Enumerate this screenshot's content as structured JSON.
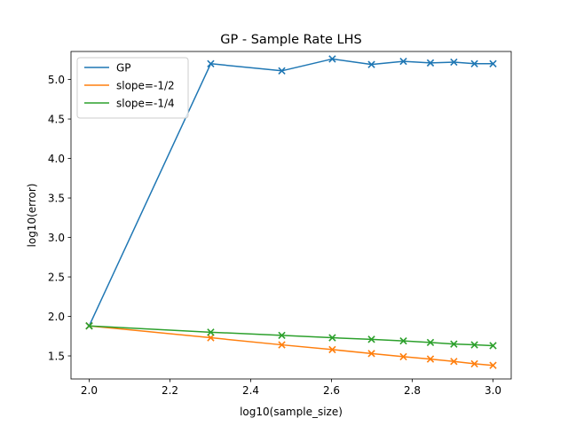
{
  "chart_data": {
    "type": "line",
    "title": "GP - Sample Rate LHS",
    "xlabel": "log10(sample_size)",
    "ylabel": "log10(error)",
    "xlim": [
      1.955,
      3.045
    ],
    "ylim": [
      1.208,
      5.355
    ],
    "xticks": [
      2.0,
      2.2,
      2.4,
      2.6,
      2.8,
      3.0
    ],
    "xtick_labels": [
      "2.0",
      "2.2",
      "2.4",
      "2.6",
      "2.8",
      "3.0"
    ],
    "yticks": [
      1.5,
      2.0,
      2.5,
      3.0,
      3.5,
      4.0,
      4.5,
      5.0
    ],
    "ytick_labels": [
      "1.5",
      "2.0",
      "2.5",
      "3.0",
      "3.5",
      "4.0",
      "4.5",
      "5.0"
    ],
    "grid": false,
    "legend_position": "top-left",
    "x": [
      2.0,
      2.301,
      2.477,
      2.602,
      2.699,
      2.778,
      2.845,
      2.903,
      2.954,
      3.0
    ],
    "series": [
      {
        "name": "GP",
        "color": "#1f77b4",
        "marker": "x",
        "values": [
          1.88,
          5.2,
          5.11,
          5.26,
          5.19,
          5.23,
          5.21,
          5.22,
          5.2,
          5.2
        ]
      },
      {
        "name": "slope=-1/2",
        "color": "#ff7f0e",
        "marker": "x",
        "values": [
          1.88,
          1.73,
          1.64,
          1.58,
          1.53,
          1.49,
          1.46,
          1.43,
          1.4,
          1.38
        ]
      },
      {
        "name": "slope=-1/4",
        "color": "#2ca02c",
        "marker": "x",
        "values": [
          1.88,
          1.8,
          1.76,
          1.73,
          1.71,
          1.69,
          1.67,
          1.65,
          1.64,
          1.63
        ]
      }
    ]
  }
}
